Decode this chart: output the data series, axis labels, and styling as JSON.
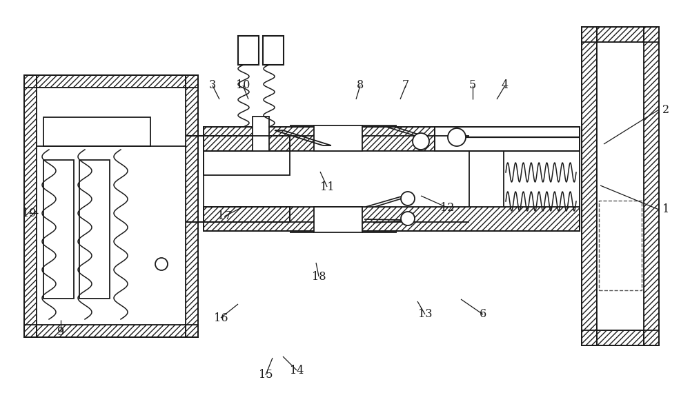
{
  "bg_color": "#ffffff",
  "lc": "#1a1a1a",
  "figsize": [
    10.0,
    5.99
  ],
  "dpi": 100,
  "labels": [
    [
      "1",
      965,
      295
    ],
    [
      "2",
      965,
      440
    ],
    [
      "3",
      308,
      475
    ],
    [
      "4",
      732,
      475
    ],
    [
      "5",
      685,
      475
    ],
    [
      "6",
      700,
      143
    ],
    [
      "7",
      588,
      475
    ],
    [
      "8",
      522,
      475
    ],
    [
      "9",
      88,
      118
    ],
    [
      "10",
      352,
      475
    ],
    [
      "11",
      474,
      328
    ],
    [
      "12",
      648,
      298
    ],
    [
      "13",
      616,
      143
    ],
    [
      "14",
      430,
      62
    ],
    [
      "15",
      385,
      55
    ],
    [
      "16",
      320,
      138
    ],
    [
      "17",
      325,
      285
    ],
    [
      "18",
      462,
      198
    ],
    [
      "19",
      42,
      290
    ]
  ]
}
